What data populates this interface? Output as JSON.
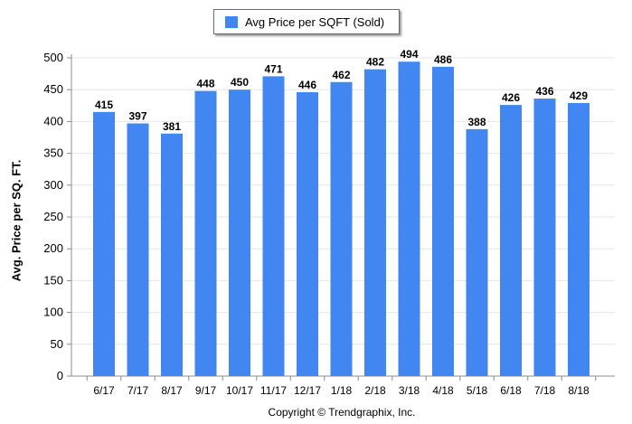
{
  "legend": {
    "label": "Avg Price per SQFT (Sold)"
  },
  "footer": {
    "copyright": "Copyright © Trendgraphix, Inc."
  },
  "chart_data": {
    "type": "bar",
    "categories": [
      "6/17",
      "7/17",
      "8/17",
      "9/17",
      "10/17",
      "11/17",
      "12/17",
      "1/18",
      "2/18",
      "3/18",
      "4/18",
      "5/18",
      "6/18",
      "7/18",
      "8/18"
    ],
    "series": [
      {
        "name": "Avg Price per SQFT (Sold)",
        "values": [
          415,
          397,
          381,
          448,
          450,
          471,
          446,
          462,
          482,
          494,
          486,
          388,
          426,
          436,
          429
        ]
      }
    ],
    "ylabel": "Avg. Price per SQ. FT.",
    "xlabel": "",
    "ylim": [
      0,
      500
    ],
    "yticks": [
      0,
      50,
      100,
      150,
      200,
      250,
      300,
      350,
      400,
      450,
      500
    ],
    "grid": true,
    "legend_position": "top",
    "bar_color": "#4186f1"
  }
}
